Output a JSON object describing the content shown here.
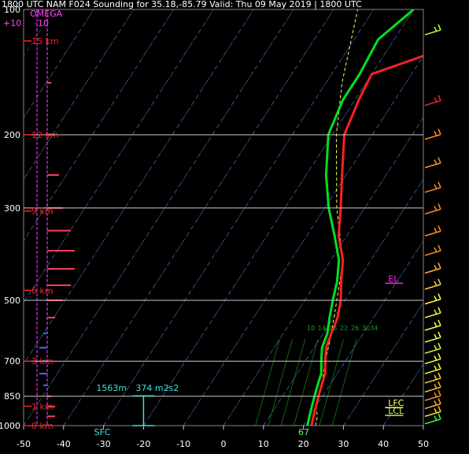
{
  "header": {
    "title": "1800 UTC NAM F024 Sounding for 35.18,-85.79 Valid: Thu 09 May 2019 | 1800 UTC"
  },
  "omega": {
    "label": "OMEGA",
    "left_tick": "+10",
    "right_tick": "-10"
  },
  "chart_data": {
    "type": "line",
    "title": "",
    "xlabel": "",
    "ylabel": "",
    "x_ticks": [
      -50,
      -40,
      -30,
      -20,
      -10,
      0,
      10,
      20,
      30,
      40,
      50
    ],
    "x_tick_labels": [
      "-50",
      "-40",
      "-30",
      "-20",
      "-10",
      "0",
      "10",
      "20",
      "30",
      "40",
      "50"
    ],
    "pressure_ticks": [
      100,
      200,
      300,
      500,
      700,
      850,
      1000
    ],
    "pressure_tick_labels": [
      "100",
      "200",
      "300",
      "500",
      "700",
      "850",
      "1000"
    ],
    "pressure_scale": "log",
    "xlim": [
      -50,
      50
    ],
    "ylim_hPa": [
      1000,
      100
    ],
    "height_markers": [
      {
        "label": "15 km",
        "p": 119
      },
      {
        "label": "12 km",
        "p": 200
      },
      {
        "label": "9 km",
        "p": 305
      },
      {
        "label": "6 km",
        "p": 473
      },
      {
        "label": "3 km",
        "p": 700
      },
      {
        "label": "1 km",
        "p": 898
      },
      {
        "label": "0 km",
        "p": 1000
      }
    ],
    "mixing_ratio_labels": [
      "10",
      "14",
      "18",
      "22",
      "26",
      "3034"
    ],
    "series": [
      {
        "color": "#ff2020",
        "points": [
          {
            "p": 100,
            "t": 2
          },
          {
            "p": 118,
            "t": -1
          },
          {
            "p": 143,
            "t": -20
          },
          {
            "p": 165,
            "t": -19
          },
          {
            "p": 200,
            "t": -17
          },
          {
            "p": 250,
            "t": -11
          },
          {
            "p": 300,
            "t": -6
          },
          {
            "p": 350,
            "t": -2
          },
          {
            "p": 400,
            "t": 3
          },
          {
            "p": 450,
            "t": 6
          },
          {
            "p": 500,
            "t": 9
          },
          {
            "p": 550,
            "t": 11
          },
          {
            "p": 600,
            "t": 12
          },
          {
            "p": 650,
            "t": 13
          },
          {
            "p": 700,
            "t": 15
          },
          {
            "p": 750,
            "t": 17
          },
          {
            "p": 800,
            "t": 18
          },
          {
            "p": 850,
            "t": 19
          },
          {
            "p": 900,
            "t": 20
          },
          {
            "p": 950,
            "t": 21
          },
          {
            "p": 1000,
            "t": 22
          }
        ]
      },
      {
        "color": "#00e020",
        "points": [
          {
            "p": 100,
            "t": -20
          },
          {
            "p": 118,
            "t": -24
          },
          {
            "p": 143,
            "t": -23
          },
          {
            "p": 165,
            "t": -23
          },
          {
            "p": 200,
            "t": -21
          },
          {
            "p": 250,
            "t": -15
          },
          {
            "p": 300,
            "t": -9
          },
          {
            "p": 350,
            "t": -3
          },
          {
            "p": 400,
            "t": 2
          },
          {
            "p": 450,
            "t": 5
          },
          {
            "p": 500,
            "t": 7
          },
          {
            "p": 550,
            "t": 9
          },
          {
            "p": 600,
            "t": 11
          },
          {
            "p": 650,
            "t": 12
          },
          {
            "p": 700,
            "t": 14
          },
          {
            "p": 750,
            "t": 16
          },
          {
            "p": 800,
            "t": 17
          },
          {
            "p": 850,
            "t": 18
          },
          {
            "p": 900,
            "t": 19
          },
          {
            "p": 950,
            "t": 20
          },
          {
            "p": 1000,
            "t": 21
          }
        ]
      }
    ],
    "parcel_color": "#ffff60",
    "parcel": [
      {
        "p": 1000,
        "t": 23
      },
      {
        "p": 950,
        "t": 22
      },
      {
        "p": 900,
        "t": 20
      },
      {
        "p": 850,
        "t": 19
      },
      {
        "p": 800,
        "t": 18
      },
      {
        "p": 700,
        "t": 15
      },
      {
        "p": 600,
        "t": 12
      },
      {
        "p": 500,
        "t": 8
      },
      {
        "p": 400,
        "t": 3
      },
      {
        "p": 300,
        "t": -7
      },
      {
        "p": 200,
        "t": -19
      },
      {
        "p": 150,
        "t": -26
      },
      {
        "p": 100,
        "t": -34
      }
    ],
    "levels": [
      {
        "label": "EL",
        "p": 455,
        "t": 41,
        "color": "#ff20ff"
      },
      {
        "label": "LFC",
        "p": 905,
        "t": 41,
        "color": "#ffff60"
      },
      {
        "label": "LCL",
        "p": 945,
        "t": 41,
        "color": "#b0ff40"
      }
    ],
    "helicity": {
      "depth_label": "1563m",
      "value_label": "374 m2s2",
      "p_top": 848,
      "p_bottom": 1000,
      "t": -20,
      "color": "#40e0e0"
    },
    "sfc_label": "SFC",
    "sfc_value": "67",
    "omega_bars": [
      {
        "p": 150,
        "v": -0.5
      },
      {
        "p": 200,
        "v": -1
      },
      {
        "p": 250,
        "v": -1.5
      },
      {
        "p": 300,
        "v": -2
      },
      {
        "p": 340,
        "v": -3
      },
      {
        "p": 380,
        "v": -3.5
      },
      {
        "p": 420,
        "v": -3.5
      },
      {
        "p": 460,
        "v": -3
      },
      {
        "p": 500,
        "v": -2
      },
      {
        "p": 550,
        "v": -1
      },
      {
        "p": 600,
        "v": 0.5
      },
      {
        "p": 650,
        "v": 1
      },
      {
        "p": 700,
        "v": 1
      },
      {
        "p": 750,
        "v": 1
      },
      {
        "p": 800,
        "v": 0.5
      },
      {
        "p": 850,
        "v": -0.5
      },
      {
        "p": 900,
        "v": -1
      },
      {
        "p": 950,
        "v": -1
      }
    ],
    "wind_barbs": [
      {
        "p": 115,
        "color": "#c0ff40"
      },
      {
        "p": 170,
        "color": "#ff2020"
      },
      {
        "p": 205,
        "color": "#ff9020"
      },
      {
        "p": 240,
        "color": "#ff9020"
      },
      {
        "p": 275,
        "color": "#ff9020"
      },
      {
        "p": 310,
        "color": "#ff9020"
      },
      {
        "p": 350,
        "color": "#ff9020"
      },
      {
        "p": 390,
        "color": "#ff9020"
      },
      {
        "p": 430,
        "color": "#ffb030"
      },
      {
        "p": 470,
        "color": "#ffd040"
      },
      {
        "p": 510,
        "color": "#ffff40"
      },
      {
        "p": 550,
        "color": "#ffff40"
      },
      {
        "p": 590,
        "color": "#ffff40"
      },
      {
        "p": 630,
        "color": "#ffff40"
      },
      {
        "p": 670,
        "color": "#e0ff40"
      },
      {
        "p": 710,
        "color": "#ffff40"
      },
      {
        "p": 750,
        "color": "#ffff40"
      },
      {
        "p": 790,
        "color": "#ffd040"
      },
      {
        "p": 830,
        "color": "#ffb030"
      },
      {
        "p": 870,
        "color": "#ff9020"
      },
      {
        "p": 910,
        "color": "#ffb030"
      },
      {
        "p": 950,
        "color": "#ffd040"
      },
      {
        "p": 990,
        "color": "#40ff40"
      }
    ]
  }
}
